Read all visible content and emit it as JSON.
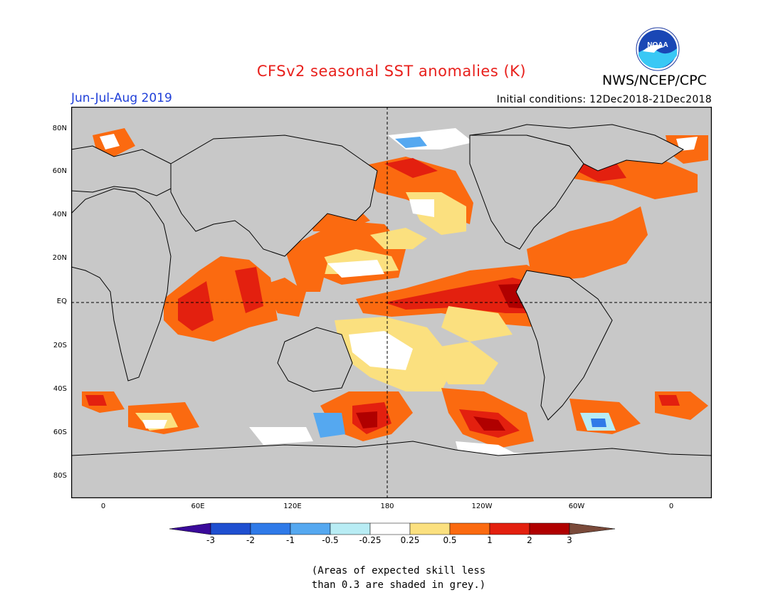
{
  "header": {
    "title": "CFSv2 seasonal SST anomalies (K)",
    "agency": "NWS/NCEP/CPC",
    "season": "Jun-Jul-Aug 2019",
    "initial_conditions": "Initial conditions: 12Dec2018-21Dec2018",
    "logo_text": "NOAA"
  },
  "map": {
    "projection": "equirectangular",
    "land_color": "#c8c8c8",
    "coastline_color": "#000000",
    "lat_labels": [
      "80N",
      "60N",
      "40N",
      "20N",
      "EQ",
      "20S",
      "40S",
      "60S",
      "80S"
    ],
    "lon_labels": [
      "0",
      "60E",
      "120E",
      "180",
      "120W",
      "60W",
      "0"
    ],
    "reference_lines": [
      "EQ",
      "180"
    ]
  },
  "colorbar": {
    "tick_labels": [
      "-3",
      "-2",
      "-1",
      "-0.5",
      "-0.25",
      "0.25",
      "0.5",
      "1",
      "2",
      "3"
    ],
    "colors": [
      "#3a0a9a",
      "#1f4fd0",
      "#2f7ae8",
      "#55a8f0",
      "#b8ecf4",
      "#ffffff",
      "#fbe07f",
      "#fb6a10",
      "#e3200f",
      "#b00000",
      "#7a4a3a"
    ]
  },
  "note": {
    "line1": "(Areas of expected skill less",
    "line2": "than 0.3 are shaded in grey.)"
  }
}
